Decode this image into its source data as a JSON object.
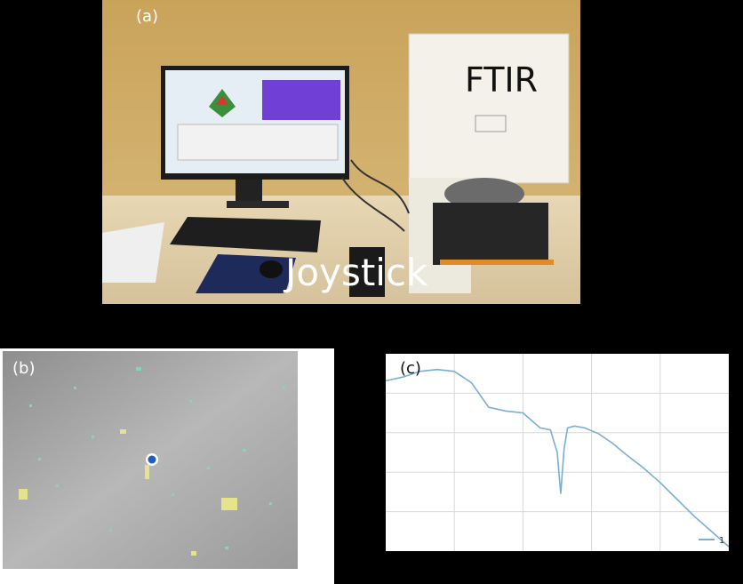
{
  "panels": {
    "a": {
      "label": "(a)",
      "instrument_label": "FTIR",
      "controller_label": "Joystick"
    },
    "b": {
      "label": "(b)"
    },
    "c": {
      "label": "(c)",
      "legend_entry": "1"
    }
  },
  "chart_data": {
    "type": "line",
    "title": "",
    "xlabel": "",
    "ylabel": "",
    "grid": true,
    "legend": "bottom-right",
    "series": [
      {
        "name": "1",
        "color": "#7aaed6",
        "x": [
          0,
          0.05,
          0.1,
          0.15,
          0.2,
          0.25,
          0.3,
          0.35,
          0.4,
          0.45,
          0.48,
          0.5,
          0.51,
          0.52,
          0.53,
          0.55,
          0.58,
          0.62,
          0.66,
          0.7,
          0.75,
          0.8,
          0.85,
          0.9,
          0.95,
          1.0
        ],
        "y": [
          0.88,
          0.9,
          0.93,
          0.94,
          0.93,
          0.87,
          0.74,
          0.72,
          0.71,
          0.63,
          0.62,
          0.5,
          0.28,
          0.52,
          0.63,
          0.64,
          0.63,
          0.6,
          0.55,
          0.49,
          0.42,
          0.34,
          0.25,
          0.16,
          0.08,
          0.0
        ]
      }
    ]
  }
}
